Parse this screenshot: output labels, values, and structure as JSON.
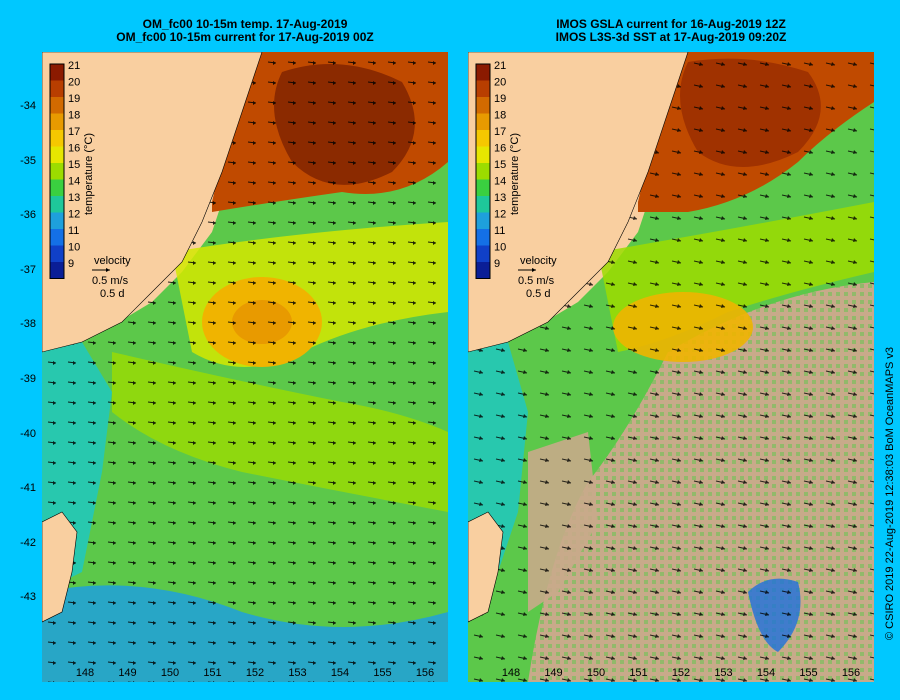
{
  "left_panel": {
    "title_line1": "OM_fc00 10-15m temp. 17-Aug-2019",
    "title_line2": "OM_fc00 10-15m current for 17-Aug-2019 00Z"
  },
  "right_panel": {
    "title_line1": "IMOS GSLA current for 16-Aug-2019 12Z",
    "title_line2": "IMOS L3S-3d SST at 17-Aug-2019 09:20Z"
  },
  "colorbar": {
    "label": "temperature (°C)",
    "ticks": [
      "21",
      "20",
      "19",
      "18",
      "17",
      "16",
      "15",
      "14",
      "13",
      "12",
      "11",
      "10",
      "9"
    ],
    "colors": [
      "#8b1a00",
      "#b83e00",
      "#d26a00",
      "#e89a00",
      "#f5c800",
      "#e6e600",
      "#9cdc00",
      "#3ad040",
      "#1ec89a",
      "#1ea0dc",
      "#1470e6",
      "#1040c8",
      "#0a1e96"
    ]
  },
  "velocity_legend": {
    "label": "velocity",
    "speed": "0.5 m/s",
    "duration": "0.5 d"
  },
  "y_axis_labels": [
    "-34",
    "-35",
    "-36",
    "-37",
    "-38",
    "-39",
    "-40",
    "-41",
    "-42",
    "-43"
  ],
  "x_axis_labels": [
    "148",
    "149",
    "150",
    "151",
    "152",
    "153",
    "154",
    "155",
    "156"
  ],
  "copyright": "© CSIRO 2019   22-Aug-2019 12:38:03 BoM OceanMAPS v3",
  "colors": {
    "background": "#00c8ff",
    "land": "#f9cfa0",
    "cloud_mask": "#c8aa8a"
  }
}
